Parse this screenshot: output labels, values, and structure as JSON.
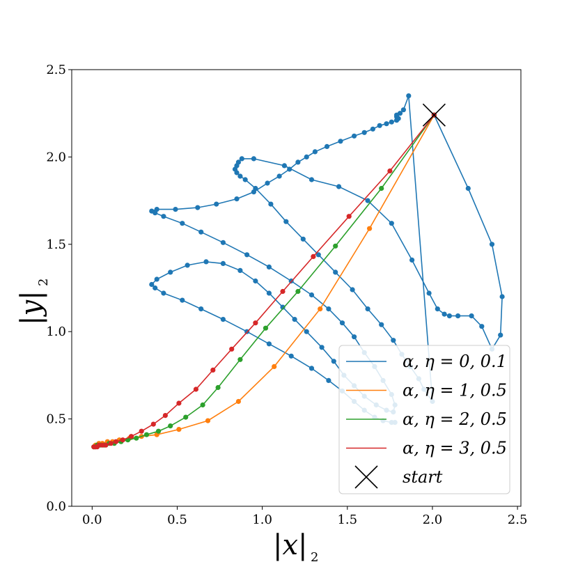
{
  "chart_data": {
    "type": "line",
    "xlabel": "|x|",
    "xlabel_sub": "2",
    "ylabel": "|y|",
    "ylabel_sub": "2",
    "xlim": [
      -0.12,
      2.52
    ],
    "ylim": [
      0.0,
      2.5
    ],
    "xticks": [
      "0.0",
      "0.5",
      "1.0",
      "1.5",
      "2.0",
      "2.5"
    ],
    "yticks": [
      "0.0",
      "0.5",
      "1.0",
      "1.5",
      "2.0",
      "2.5"
    ],
    "grid": false,
    "legend_position": "lower right",
    "series": [
      {
        "name": "α, η = 0, 0.1",
        "color": "#1f77b4",
        "x": [
          2.01,
          2.21,
          2.35,
          2.41,
          2.4,
          2.35,
          2.29,
          2.23,
          2.15,
          2.1,
          2.07,
          2.03,
          1.98,
          1.88,
          1.76,
          1.62,
          1.45,
          1.29,
          1.13,
          0.95,
          0.88,
          0.86,
          0.85,
          0.84,
          0.85,
          0.87,
          0.9,
          0.96,
          1.05,
          1.14,
          1.24,
          1.33,
          1.43,
          1.53,
          1.62,
          1.7,
          1.77,
          1.82,
          1.87,
          1.92,
          1.95,
          2.0,
          1.86,
          1.83,
          1.81,
          1.79,
          1.79,
          1.8,
          1.79,
          1.76,
          1.73,
          1.69,
          1.65,
          1.6,
          1.54,
          1.46,
          1.38,
          1.31,
          1.26,
          1.21,
          1.16,
          1.1,
          1.03,
          0.95,
          0.85,
          0.73,
          0.62,
          0.49,
          0.38,
          0.35,
          0.37,
          0.42,
          0.53,
          0.64,
          0.77,
          0.91,
          1.04,
          1.17,
          1.29,
          1.39,
          1.47,
          1.54,
          1.6,
          1.66,
          1.71,
          1.76,
          1.78,
          1.77,
          1.73,
          1.67,
          1.6,
          1.54,
          1.48,
          1.42,
          1.35,
          1.26,
          1.19,
          1.12,
          1.04,
          0.96,
          0.87,
          0.77,
          0.67,
          0.56,
          0.46,
          0.38,
          0.35,
          0.37,
          0.42,
          0.53,
          0.64,
          0.77,
          0.91,
          1.04,
          1.17,
          1.29,
          1.39,
          1.47,
          1.54,
          1.6,
          1.66,
          1.71,
          1.76,
          1.78
        ],
        "x_note": "",
        "y": [
          2.24,
          1.82,
          1.5,
          1.2,
          0.98,
          0.9,
          1.03,
          1.09,
          1.09,
          1.09,
          1.1,
          1.13,
          1.22,
          1.41,
          1.62,
          1.75,
          1.83,
          1.87,
          1.95,
          1.99,
          1.99,
          1.97,
          1.95,
          1.93,
          1.91,
          1.89,
          1.87,
          1.82,
          1.73,
          1.63,
          1.53,
          1.44,
          1.34,
          1.24,
          1.13,
          1.04,
          0.95,
          0.87,
          0.8,
          0.73,
          0.67,
          0.6,
          2.35,
          2.27,
          2.25,
          2.24,
          2.23,
          2.22,
          2.21,
          2.2,
          2.19,
          2.18,
          2.16,
          2.14,
          2.12,
          2.09,
          2.06,
          2.03,
          2.0,
          1.97,
          1.93,
          1.89,
          1.85,
          1.8,
          1.76,
          1.73,
          1.71,
          1.7,
          1.7,
          1.69,
          1.68,
          1.66,
          1.62,
          1.57,
          1.51,
          1.44,
          1.37,
          1.29,
          1.21,
          1.13,
          1.05,
          0.97,
          0.88,
          0.8,
          0.72,
          0.64,
          0.58,
          0.54,
          0.55,
          0.58,
          0.63,
          0.69,
          0.75,
          0.83,
          0.91,
          1.0,
          1.07,
          1.14,
          1.22,
          1.29,
          1.35,
          1.39,
          1.4,
          1.38,
          1.34,
          1.3,
          1.27,
          1.25,
          1.22,
          1.18,
          1.13,
          1.07,
          1.0,
          0.93,
          0.86,
          0.79,
          0.72,
          0.66,
          0.6,
          0.55,
          0.51,
          0.49,
          0.48,
          0.48
        ]
      },
      {
        "name": "α, η = 1, 0.5",
        "color": "#ff7f0e",
        "x": [
          2.01,
          1.63,
          1.34,
          1.07,
          0.86,
          0.68,
          0.51,
          0.38,
          0.29,
          0.22,
          0.16,
          0.12,
          0.09,
          0.06,
          0.04,
          0.03,
          0.02,
          0.01
        ],
        "y": [
          2.24,
          1.59,
          1.13,
          0.8,
          0.6,
          0.49,
          0.44,
          0.41,
          0.4,
          0.39,
          0.38,
          0.37,
          0.37,
          0.36,
          0.36,
          0.35,
          0.35,
          0.34
        ]
      },
      {
        "name": "α, η = 2, 0.5",
        "color": "#2ca02c",
        "x": [
          2.01,
          1.7,
          1.43,
          1.21,
          1.02,
          0.87,
          0.74,
          0.65,
          0.55,
          0.46,
          0.39,
          0.32,
          0.26,
          0.21,
          0.17,
          0.13,
          0.1,
          0.07,
          0.05,
          0.03,
          0.02,
          0.01
        ],
        "y": [
          2.24,
          1.82,
          1.49,
          1.23,
          1.02,
          0.84,
          0.68,
          0.58,
          0.51,
          0.46,
          0.43,
          0.41,
          0.39,
          0.38,
          0.37,
          0.36,
          0.36,
          0.35,
          0.35,
          0.35,
          0.34,
          0.34
        ],
        "y_shift": []
      },
      {
        "name": "α, η = 3, 0.5",
        "color": "#d62728",
        "x": [
          2.01,
          1.75,
          1.51,
          1.3,
          1.12,
          0.96,
          0.82,
          0.71,
          0.61,
          0.51,
          0.43,
          0.36,
          0.29,
          0.23,
          0.18,
          0.14,
          0.11,
          0.08,
          0.06,
          0.04,
          0.03,
          0.02,
          0.01
        ],
        "y": [
          2.24,
          1.92,
          1.66,
          1.43,
          1.23,
          1.05,
          0.9,
          0.78,
          0.67,
          0.59,
          0.52,
          0.47,
          0.43,
          0.4,
          0.38,
          0.37,
          0.36,
          0.35,
          0.35,
          0.35,
          0.34,
          0.34,
          0.34
        ]
      }
    ],
    "markers": [
      {
        "name": "start",
        "x": 2.01,
        "y": 2.24,
        "symbol": "x",
        "color": "#000000"
      }
    ]
  }
}
